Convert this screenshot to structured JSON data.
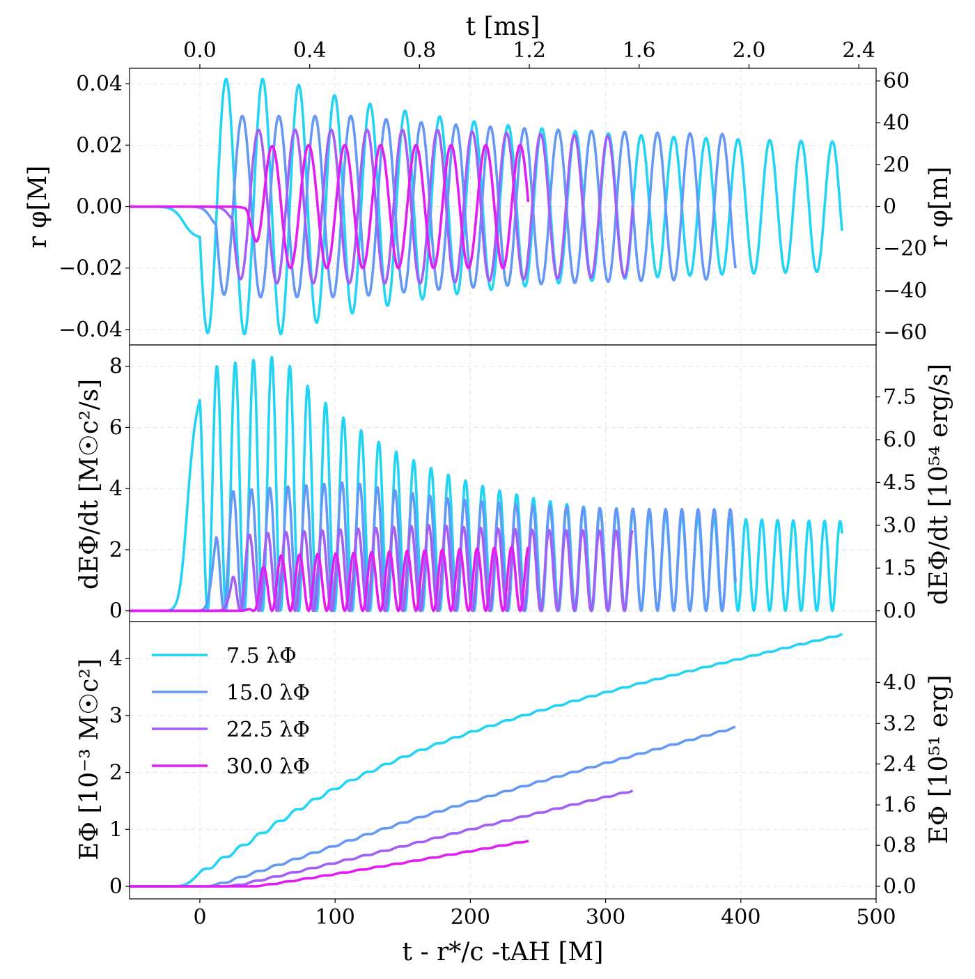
{
  "chart_data": {
    "type": "line",
    "x_axis": {
      "label": "t - r*/c -tAH [M]",
      "lim": [
        -52,
        500
      ],
      "ticks": [
        0,
        100,
        200,
        300,
        400,
        500
      ]
    },
    "top_axis": {
      "label": "t [ms]",
      "ticks": [
        {
          "label": "0.0",
          "x": 0
        },
        {
          "label": "0.4",
          "x": 81.2
        },
        {
          "label": "0.8",
          "x": 162.4
        },
        {
          "label": "1.2",
          "x": 243.6
        },
        {
          "label": "1.6",
          "x": 324.8
        },
        {
          "label": "2.0",
          "x": 406.0
        },
        {
          "label": "2.4",
          "x": 487.2
        }
      ]
    },
    "series": [
      {
        "name": "7.5 λΦ",
        "color": "#22d4f4",
        "x_end": 475,
        "phi_amp": 0.041,
        "power_peak": 8.3,
        "energy_final": 4.43
      },
      {
        "name": "15.0 λΦ",
        "color": "#6598f6",
        "x_end": 396,
        "phi_amp": 0.029,
        "power_peak": 4.2,
        "energy_final": 2.8
      },
      {
        "name": "22.5 λΦ",
        "color": "#a35ef5",
        "x_end": 320,
        "phi_amp": 0.025,
        "power_peak": 2.8,
        "energy_final": 1.68
      },
      {
        "name": "30.0 λΦ",
        "color": "#e41cf4",
        "x_end": 243,
        "phi_amp": 0.02,
        "power_peak": 2.1,
        "energy_final": 0.8
      }
    ],
    "panels": [
      {
        "ylabel_left": "r φ[M]",
        "ylabel_right": "r φ[m]",
        "ylim": [
          -0.045,
          0.045
        ],
        "yticks": [
          {
            "v": 0.04,
            "label": "0.04"
          },
          {
            "v": 0.02,
            "label": "0.02"
          },
          {
            "v": 0.0,
            "label": "0.00"
          },
          {
            "v": -0.02,
            "label": "−0.02"
          },
          {
            "v": -0.04,
            "label": "−0.04"
          }
        ],
        "yticks_right": [
          {
            "v": 0.0409,
            "label": "60"
          },
          {
            "v": 0.0273,
            "label": "40"
          },
          {
            "v": 0.0136,
            "label": "20"
          },
          {
            "v": 0.0,
            "label": "0"
          },
          {
            "v": -0.0136,
            "label": "−20"
          },
          {
            "v": -0.0273,
            "label": "−40"
          },
          {
            "v": -0.0409,
            "label": "−60"
          }
        ]
      },
      {
        "ylabel_left": "dEΦ/dt [M☉c²/s]",
        "ylabel_right": "dEΦ/dt [10⁵⁴ erg/s]",
        "ylim": [
          -0.35,
          8.7
        ],
        "yticks": [
          {
            "v": 8,
            "label": "8"
          },
          {
            "v": 6,
            "label": "6"
          },
          {
            "v": 4,
            "label": "4"
          },
          {
            "v": 2,
            "label": "2"
          },
          {
            "v": 0,
            "label": "0"
          }
        ],
        "yticks_right": [
          {
            "v": 7.0,
            "label": "7.5"
          },
          {
            "v": 5.6,
            "label": "6.0"
          },
          {
            "v": 4.2,
            "label": "4.5"
          },
          {
            "v": 2.8,
            "label": "3.0"
          },
          {
            "v": 1.4,
            "label": "1.5"
          },
          {
            "v": 0.0,
            "label": "0.0"
          }
        ]
      },
      {
        "ylabel_left": "EΦ [10⁻³ M☉c²]",
        "ylabel_right": "EΦ [10⁵¹ erg]",
        "ylim": [
          -0.22,
          4.65
        ],
        "yticks": [
          {
            "v": 4,
            "label": "4"
          },
          {
            "v": 3,
            "label": "3"
          },
          {
            "v": 2,
            "label": "2"
          },
          {
            "v": 1,
            "label": "1"
          },
          {
            "v": 0,
            "label": "0"
          }
        ],
        "yticks_right": [
          {
            "v": 3.58,
            "label": "4.0"
          },
          {
            "v": 2.86,
            "label": "3.2"
          },
          {
            "v": 2.15,
            "label": "2.4"
          },
          {
            "v": 1.43,
            "label": "1.6"
          },
          {
            "v": 0.72,
            "label": "0.8"
          },
          {
            "v": 0.0,
            "label": "0.0"
          }
        ]
      }
    ],
    "legend": {
      "placement": "upper-left",
      "panel": 3
    },
    "grid": true
  }
}
